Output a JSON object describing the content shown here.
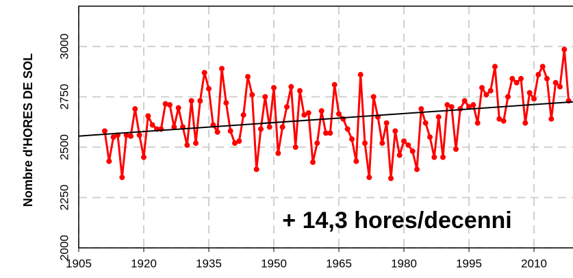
{
  "chart_data": {
    "type": "line",
    "y_label": "Nombre d'HORES DE SOL",
    "annotation": "+ 14,3 hores/decenni",
    "xlim": [
      1905,
      2019
    ],
    "xticks": [
      1905,
      1920,
      1935,
      1950,
      1965,
      1980,
      1995,
      2010
    ],
    "ylim": [
      2000,
      3200
    ],
    "yticks": [
      2000,
      2250,
      2500,
      2750,
      3000
    ],
    "grid": true,
    "x": [
      1911,
      1912,
      1913,
      1914,
      1915,
      1916,
      1917,
      1918,
      1919,
      1920,
      1921,
      1922,
      1923,
      1924,
      1925,
      1926,
      1927,
      1928,
      1929,
      1930,
      1931,
      1932,
      1933,
      1934,
      1935,
      1936,
      1937,
      1938,
      1939,
      1940,
      1941,
      1942,
      1943,
      1944,
      1945,
      1946,
      1947,
      1948,
      1949,
      1950,
      1951,
      1952,
      1953,
      1954,
      1955,
      1956,
      1957,
      1958,
      1959,
      1960,
      1961,
      1962,
      1963,
      1964,
      1965,
      1966,
      1967,
      1968,
      1969,
      1970,
      1971,
      1972,
      1973,
      1974,
      1975,
      1976,
      1977,
      1978,
      1979,
      1980,
      1981,
      1982,
      1983,
      1984,
      1985,
      1986,
      1987,
      1988,
      1989,
      1990,
      1991,
      1992,
      1993,
      1994,
      1995,
      1996,
      1997,
      1998,
      1999,
      2000,
      2001,
      2002,
      2003,
      2004,
      2005,
      2006,
      2007,
      2008,
      2009,
      2010,
      2011,
      2012,
      2013,
      2014,
      2015,
      2016,
      2017,
      2018
    ],
    "series": [
      {
        "color": "#ff0000",
        "values": [
          2580,
          2430,
          2550,
          2560,
          2350,
          2560,
          2555,
          2690,
          2560,
          2450,
          2655,
          2610,
          2590,
          2590,
          2715,
          2710,
          2600,
          2695,
          2600,
          2510,
          2730,
          2520,
          2730,
          2870,
          2790,
          2610,
          2575,
          2890,
          2720,
          2580,
          2520,
          2530,
          2660,
          2850,
          2760,
          2390,
          2590,
          2750,
          2600,
          2795,
          2470,
          2600,
          2700,
          2800,
          2500,
          2780,
          2660,
          2670,
          2425,
          2520,
          2680,
          2570,
          2570,
          2810,
          2665,
          2640,
          2590,
          2540,
          2430,
          2860,
          2520,
          2350,
          2750,
          2650,
          2520,
          2620,
          2345,
          2580,
          2460,
          2530,
          2510,
          2480,
          2390,
          2690,
          2620,
          2550,
          2450,
          2650,
          2450,
          2710,
          2700,
          2490,
          2690,
          2730,
          2700,
          2710,
          2620,
          2795,
          2760,
          2780,
          2900,
          2640,
          2630,
          2750,
          2840,
          2820,
          2840,
          2620,
          2770,
          2740,
          2860,
          2900,
          2840,
          2640,
          2820,
          2800,
          2985,
          2730
        ]
      }
    ],
    "trend": {
      "color": "#000000",
      "x": [
        1905,
        2019
      ],
      "values": [
        2555,
        2725
      ]
    }
  }
}
